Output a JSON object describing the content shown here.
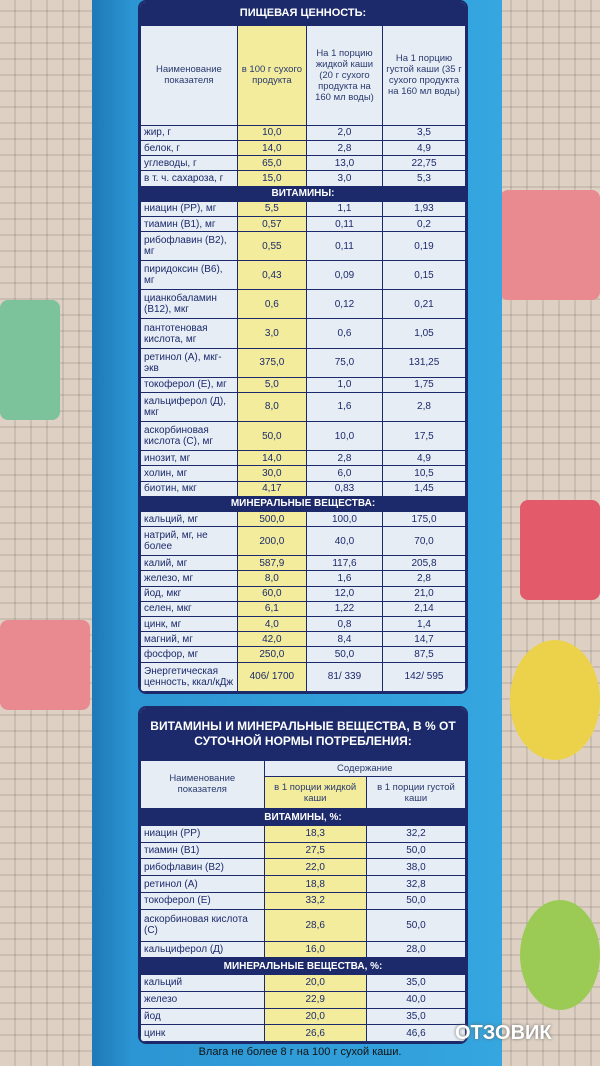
{
  "nutrition": {
    "title": "ПИЩЕВАЯ ЦЕННОСТЬ:",
    "headers": [
      "Наименование показателя",
      "в 100 г сухого продукта",
      "На 1 порцию жидкой каши (20 г сухого продукта на 160 мл воды)",
      "На 1 порцию густой каши (35 г сухого продукта на 160 мл воды)"
    ],
    "sections": [
      {
        "title": null,
        "rows": [
          [
            "жир, г",
            "10,0",
            "2,0",
            "3,5"
          ],
          [
            "белок, г",
            "14,0",
            "2,8",
            "4,9"
          ],
          [
            "углеводы, г",
            "65,0",
            "13,0",
            "22,75"
          ],
          [
            "в т. ч. сахароза, г",
            "15,0",
            "3,0",
            "5,3"
          ]
        ]
      },
      {
        "title": "ВИТАМИНЫ:",
        "rows": [
          [
            "ниацин (PP), мг",
            "5,5",
            "1,1",
            "1,93"
          ],
          [
            "тиамин (B1), мг",
            "0,57",
            "0,11",
            "0,2"
          ],
          [
            "рибофлавин (B2), мг",
            "0,55",
            "0,11",
            "0,19"
          ],
          [
            "пиридоксин (B6), мг",
            "0,43",
            "0,09",
            "0,15"
          ],
          [
            "цианкобаламин (B12), мкг",
            "0,6",
            "0,12",
            "0,21"
          ],
          [
            "пантотеновая кислота, мг",
            "3,0",
            "0,6",
            "1,05"
          ],
          [
            "ретинол (А), мкг-экв",
            "375,0",
            "75,0",
            "131,25"
          ],
          [
            "токоферол (Е), мг",
            "5,0",
            "1,0",
            "1,75"
          ],
          [
            "кальциферол (Д), мкг",
            "8,0",
            "1,6",
            "2,8"
          ],
          [
            "аскорбиновая кислота (С), мг",
            "50,0",
            "10,0",
            "17,5"
          ],
          [
            "инозит, мг",
            "14,0",
            "2,8",
            "4,9"
          ],
          [
            "холин, мг",
            "30,0",
            "6,0",
            "10,5"
          ],
          [
            "биотин, мкг",
            "4,17",
            "0,83",
            "1,45"
          ]
        ]
      },
      {
        "title": "МИНЕРАЛЬНЫЕ ВЕЩЕСТВА:",
        "rows": [
          [
            "кальций, мг",
            "500,0",
            "100,0",
            "175,0"
          ],
          [
            "натрий, мг, не более",
            "200,0",
            "40,0",
            "70,0"
          ],
          [
            "калий, мг",
            "587,9",
            "117,6",
            "205,8"
          ],
          [
            "железо, мг",
            "8,0",
            "1,6",
            "2,8"
          ],
          [
            "йод, мкг",
            "60,0",
            "12,0",
            "21,0"
          ],
          [
            "селен, мкг",
            "6,1",
            "1,22",
            "2,14"
          ],
          [
            "цинк, мг",
            "4,0",
            "0,8",
            "1,4"
          ],
          [
            "магний, мг",
            "42,0",
            "8,4",
            "14,7"
          ],
          [
            "фосфор, мг",
            "250,0",
            "50,0",
            "87,5"
          ],
          [
            "Энергетическая ценность, ккал/кДж",
            "406/ 1700",
            "81/ 339",
            "142/ 595"
          ]
        ]
      }
    ]
  },
  "daily": {
    "title": "ВИТАМИНЫ И МИНЕРАЛЬНЫЕ ВЕЩЕСТВА, В % ОТ СУТОЧНОЙ НОРМЫ ПОТРЕБЛЕНИЯ:",
    "name_header": "Наименование показателя",
    "content_header": "Содержание",
    "subheaders": [
      "в 1 порции жидкой каши",
      "в 1 порции густой каши"
    ],
    "sections": [
      {
        "title": "ВИТАМИНЫ, %:",
        "rows": [
          [
            "ниацин (PP)",
            "18,3",
            "32,2"
          ],
          [
            "тиамин (B1)",
            "27,5",
            "50,0"
          ],
          [
            "рибофлавин (B2)",
            "22,0",
            "38,0"
          ],
          [
            "ретинол (А)",
            "18,8",
            "32,8"
          ],
          [
            "токоферол (Е)",
            "33,2",
            "50,0"
          ],
          [
            "аскорбиновая кислота (С)",
            "28,6",
            "50,0"
          ],
          [
            "кальциферол (Д)",
            "16,0",
            "28,0"
          ]
        ]
      },
      {
        "title": "МИНЕРАЛЬНЫЕ ВЕЩЕСТВА, %:",
        "rows": [
          [
            "кальций",
            "20,0",
            "35,0"
          ],
          [
            "железо",
            "22,9",
            "40,0"
          ],
          [
            "йод",
            "20,0",
            "35,0"
          ],
          [
            "цинк",
            "26,6",
            "46,6"
          ]
        ]
      }
    ]
  },
  "footer": "Влага не более 8 г на 100 г сухой каши.",
  "watermark": "ОТЗОВИК"
}
